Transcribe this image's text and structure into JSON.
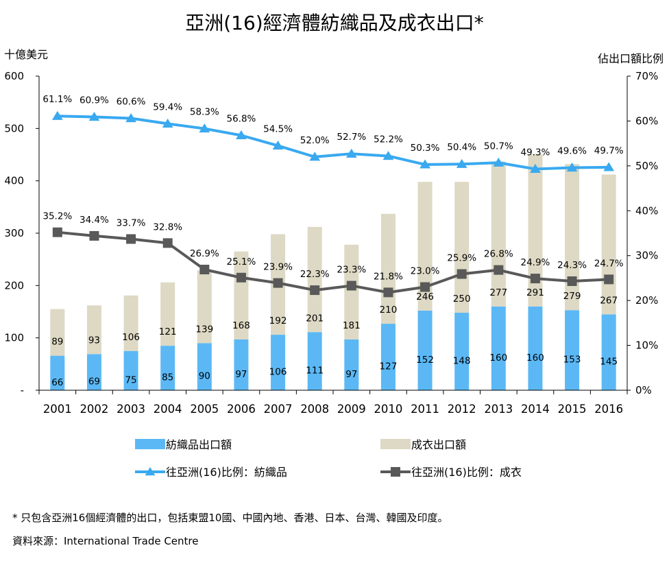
{
  "title": "亞洲(16)經濟體紡織品及成衣出口*",
  "left_unit": "十億美元",
  "right_unit": "佔出口額比例",
  "footnote": "* 只包含亞洲16個經濟體的出口，包括東盟10國、中國內地、香港、日本、台灣、韓國及印度。",
  "source": "資料來源：International Trade Centre",
  "colors": {
    "textile_bar": "#5bb8f5",
    "garment_bar": "#ddd9c4",
    "textile_line": "#39a9f0",
    "garment_line": "#595959",
    "axis": "#000000"
  },
  "chart_data": {
    "type": "bar",
    "stacked": true,
    "categories": [
      "2001",
      "2002",
      "2003",
      "2004",
      "2005",
      "2006",
      "2007",
      "2008",
      "2009",
      "2010",
      "2011",
      "2012",
      "2013",
      "2014",
      "2015",
      "2016"
    ],
    "series": [
      {
        "name": "紡織品出口額",
        "kind": "bar",
        "values": [
          66,
          69,
          75,
          85,
          90,
          97,
          106,
          111,
          97,
          127,
          152,
          148,
          160,
          160,
          153,
          145
        ]
      },
      {
        "name": "成衣出口額",
        "kind": "bar",
        "values": [
          89,
          93,
          106,
          121,
          139,
          168,
          192,
          201,
          181,
          210,
          246,
          250,
          277,
          291,
          279,
          267
        ]
      },
      {
        "name": "往亞洲(16)比例：紡織品",
        "kind": "line",
        "axis": "right",
        "marker": "triangle",
        "values": [
          61.1,
          60.9,
          60.6,
          59.4,
          58.3,
          56.8,
          54.5,
          52.0,
          52.7,
          52.2,
          50.3,
          50.4,
          50.7,
          49.3,
          49.6,
          49.7
        ]
      },
      {
        "name": "往亞洲(16)比例：成衣",
        "kind": "line",
        "axis": "right",
        "marker": "square",
        "values": [
          35.2,
          34.4,
          33.7,
          32.8,
          26.9,
          25.1,
          23.9,
          22.3,
          23.3,
          21.8,
          23.0,
          25.9,
          26.8,
          24.9,
          24.3,
          24.7
        ]
      }
    ],
    "y_left": {
      "label": "十億美元",
      "min": 0,
      "max": 600,
      "ticks": [
        "-",
        "100",
        "200",
        "300",
        "400",
        "500",
        "600"
      ],
      "tick_values": [
        0,
        100,
        200,
        300,
        400,
        500,
        600
      ]
    },
    "y_right": {
      "label": "佔出口額比例",
      "min": 0,
      "max": 70,
      "ticks": [
        "0%",
        "10%",
        "20%",
        "30%",
        "40%",
        "50%",
        "60%",
        "70%"
      ],
      "tick_values": [
        0,
        10,
        20,
        30,
        40,
        50,
        60,
        70
      ]
    },
    "legend": [
      {
        "label": "紡織品出口額",
        "kind": "bar",
        "color": "#5bb8f5"
      },
      {
        "label": "成衣出口額",
        "kind": "bar",
        "color": "#ddd9c4"
      },
      {
        "label": "往亞洲(16)比例：紡織品",
        "kind": "line",
        "marker": "triangle",
        "color": "#39a9f0"
      },
      {
        "label": "往亞洲(16)比例：成衣",
        "kind": "line",
        "marker": "square",
        "color": "#595959"
      }
    ],
    "legend_position": "bottom"
  }
}
